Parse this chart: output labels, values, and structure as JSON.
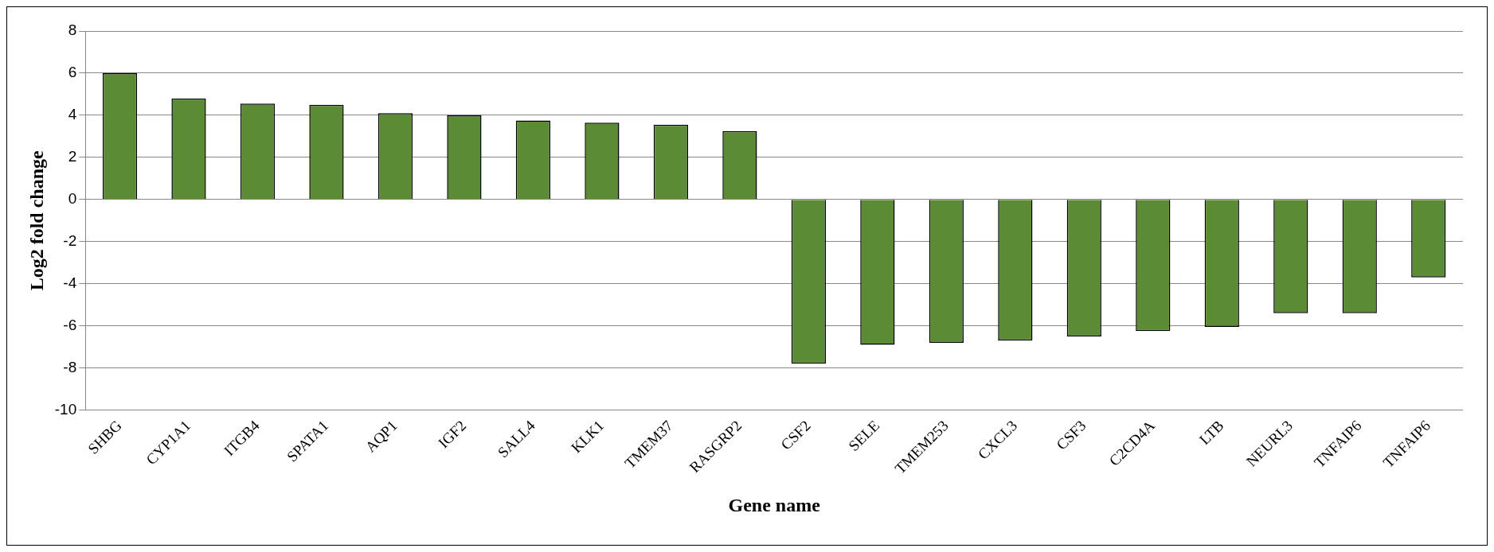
{
  "chart_data": {
    "type": "bar",
    "xlabel": "Gene name",
    "ylabel": "Log2 fold change",
    "categories": [
      "SHBG",
      "CYP1A1",
      "ITGB4",
      "SPATA1",
      "AQP1",
      "IGF2",
      "SALL4",
      "KLK1",
      "TMEM37",
      "RASGRP2",
      "CSF2",
      "SELE",
      "TMEM253",
      "CXCL3",
      "CSF3",
      "C2CD4A",
      "LTB",
      "NEURL3",
      "TNFAIP6",
      "TNFAIP6"
    ],
    "values": [
      6.0,
      4.8,
      4.55,
      4.5,
      4.1,
      4.0,
      3.75,
      3.65,
      3.55,
      3.25,
      -7.8,
      -6.9,
      -6.8,
      -6.7,
      -6.5,
      -6.25,
      -6.05,
      -5.4,
      -5.4,
      -3.7
    ],
    "color": "#5b8c35",
    "ylim": [
      -10,
      8
    ],
    "yticks": [
      -10,
      -8,
      -6,
      -4,
      -2,
      0,
      2,
      4,
      6,
      8
    ],
    "grid": "y",
    "legend": false
  }
}
